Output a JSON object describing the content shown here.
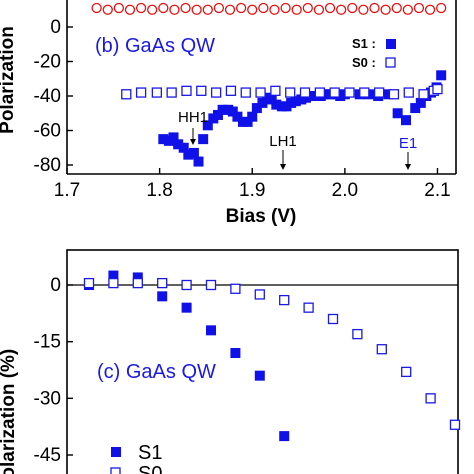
{
  "colors": {
    "s1": "#1010e8",
    "s0": "#1a1ae6",
    "panel_a_series": "#e81010",
    "axis": "#000000",
    "title": "#1a1ae6"
  },
  "chart_data": [
    {
      "type": "scatter",
      "panel": "b",
      "title": "(b) GaAs QW",
      "xlabel": "Bias (V)",
      "ylabel": "Polarization",
      "xlim": [
        1.7,
        2.12
      ],
      "ylim": [
        -85,
        12
      ],
      "xticks": [
        {
          "value": 1.7,
          "label": "1.7"
        },
        {
          "value": 1.8,
          "label": "1.8"
        },
        {
          "value": 1.9,
          "label": "1.9"
        },
        {
          "value": 2.0,
          "label": "2.0"
        },
        {
          "value": 2.1,
          "label": "2.1"
        }
      ],
      "yticks": [
        {
          "value": 0,
          "label": "0"
        },
        {
          "value": -20,
          "label": "-20"
        },
        {
          "value": -40,
          "label": "-40"
        },
        {
          "value": -60,
          "label": "-60"
        },
        {
          "value": -80,
          "label": "-80"
        }
      ],
      "legend": {
        "placement": "top-right",
        "entries": [
          {
            "label": "S1 :",
            "series": "S1",
            "marker": "filled-square"
          },
          {
            "label": "S0 :",
            "series": "S0",
            "marker": "open-square"
          }
        ]
      },
      "series": [
        {
          "name": "S1",
          "marker": "filled-square",
          "x": [
            1.804,
            1.81,
            1.815,
            1.82,
            1.826,
            1.831,
            1.837,
            1.842,
            1.847,
            1.852,
            1.858,
            1.863,
            1.868,
            1.874,
            1.879,
            1.884,
            1.89,
            1.895,
            1.9,
            1.905,
            1.911,
            1.916,
            1.921,
            1.926,
            1.932,
            1.937,
            1.942,
            1.947,
            1.953,
            1.958,
            1.963,
            1.968,
            1.974,
            1.979,
            1.984,
            1.99,
            1.995,
            2.0,
            2.016,
            2.026,
            2.036,
            2.047,
            2.057,
            2.066,
            2.076,
            2.082,
            2.088,
            2.093,
            2.099,
            2.104
          ],
          "y": [
            -65,
            -66,
            -64,
            -68,
            -70,
            -74,
            -73,
            -78,
            -65,
            -57,
            -53,
            -51,
            -48,
            -48,
            -49,
            -52,
            -55,
            -55,
            -52,
            -47,
            -44,
            -41,
            -42,
            -45,
            -46,
            -46,
            -44,
            -43,
            -42,
            -41,
            -40,
            -40,
            -40,
            -39,
            -39,
            -39,
            -40,
            -39,
            -39,
            -39,
            -40,
            -39,
            -50,
            -54,
            -47,
            -44,
            -40,
            -38,
            -35,
            -28
          ]
        },
        {
          "name": "S0",
          "marker": "open-square",
          "x": [
            1.764,
            1.78,
            1.797,
            1.813,
            1.829,
            1.845,
            1.861,
            1.877,
            1.893,
            1.909,
            1.925,
            1.941,
            1.957,
            1.973,
            1.989,
            2.005,
            2.021,
            2.037,
            2.053,
            2.069,
            2.085,
            2.096,
            2.1
          ],
          "y": [
            -39,
            -38,
            -38,
            -38,
            -37,
            -37,
            -38,
            -37,
            -38,
            -38,
            -37,
            -38,
            -38,
            -38,
            -38,
            -38,
            -38,
            -38,
            -39,
            -38,
            -39,
            -37,
            -36
          ]
        },
        {
          "name": "",
          "marker": "open-circle",
          "x": [
            1.732,
            1.744,
            1.756,
            1.768,
            1.78,
            1.792,
            1.804,
            1.816,
            1.828,
            1.84,
            1.852,
            1.864,
            1.876,
            1.888,
            1.9,
            1.912,
            1.924,
            1.936,
            1.948,
            1.96,
            1.972,
            1.984,
            1.996,
            2.008,
            2.02,
            2.032,
            2.044,
            2.056,
            2.068,
            2.08,
            2.092,
            2.104
          ],
          "y": [
            11,
            10,
            11,
            10,
            11,
            10,
            11,
            10,
            11,
            10,
            10,
            11,
            10,
            11,
            10,
            11,
            10,
            11,
            10,
            11,
            10,
            11,
            10,
            11,
            10,
            11,
            10,
            11,
            10,
            11,
            10,
            11
          ]
        }
      ],
      "annotations": [
        {
          "text": "HH1",
          "x": 1.829,
          "y": -50,
          "arrow_to": -64,
          "color": "black"
        },
        {
          "text": "LH1",
          "x": 1.929,
          "y": -61,
          "arrow_to": -80,
          "color": "black"
        },
        {
          "text": "E1",
          "x": 2.063,
          "y": -64,
          "arrow_to": -80,
          "color": "blue"
        }
      ]
    },
    {
      "type": "scatter",
      "panel": "c",
      "title": "(c) GaAs QW",
      "xlabel": "",
      "ylabel": "Polarization (%)",
      "ylim": [
        -58,
        5
      ],
      "yticks": [
        {
          "value": 0,
          "label": "0"
        },
        {
          "value": -15,
          "label": "-15"
        },
        {
          "value": -30,
          "label": "-30"
        },
        {
          "value": -45,
          "label": "-45"
        }
      ],
      "legend": {
        "placement": "bottom-left",
        "entries": [
          {
            "label": "S1",
            "series": "S1",
            "marker": "filled-square"
          },
          {
            "label": "S0",
            "series": "S0",
            "marker": "open-square"
          }
        ]
      },
      "series": [
        {
          "name": "S1",
          "marker": "filled-square",
          "x": [
            1,
            2,
            3,
            4,
            5,
            6,
            7,
            8,
            9
          ],
          "y": [
            0,
            2.5,
            2,
            -3,
            -6,
            -12,
            -18,
            -24,
            -40
          ]
        },
        {
          "name": "S0",
          "marker": "open-square",
          "x": [
            1,
            2,
            3,
            4,
            5,
            6,
            7,
            8,
            9,
            10,
            11,
            12,
            13,
            14,
            15,
            16
          ],
          "y": [
            0.5,
            0.5,
            0.5,
            0.5,
            0,
            0,
            -1,
            -2.5,
            -4,
            -6,
            -9,
            -13,
            -17,
            -23,
            -30,
            -37
          ]
        }
      ]
    }
  ]
}
